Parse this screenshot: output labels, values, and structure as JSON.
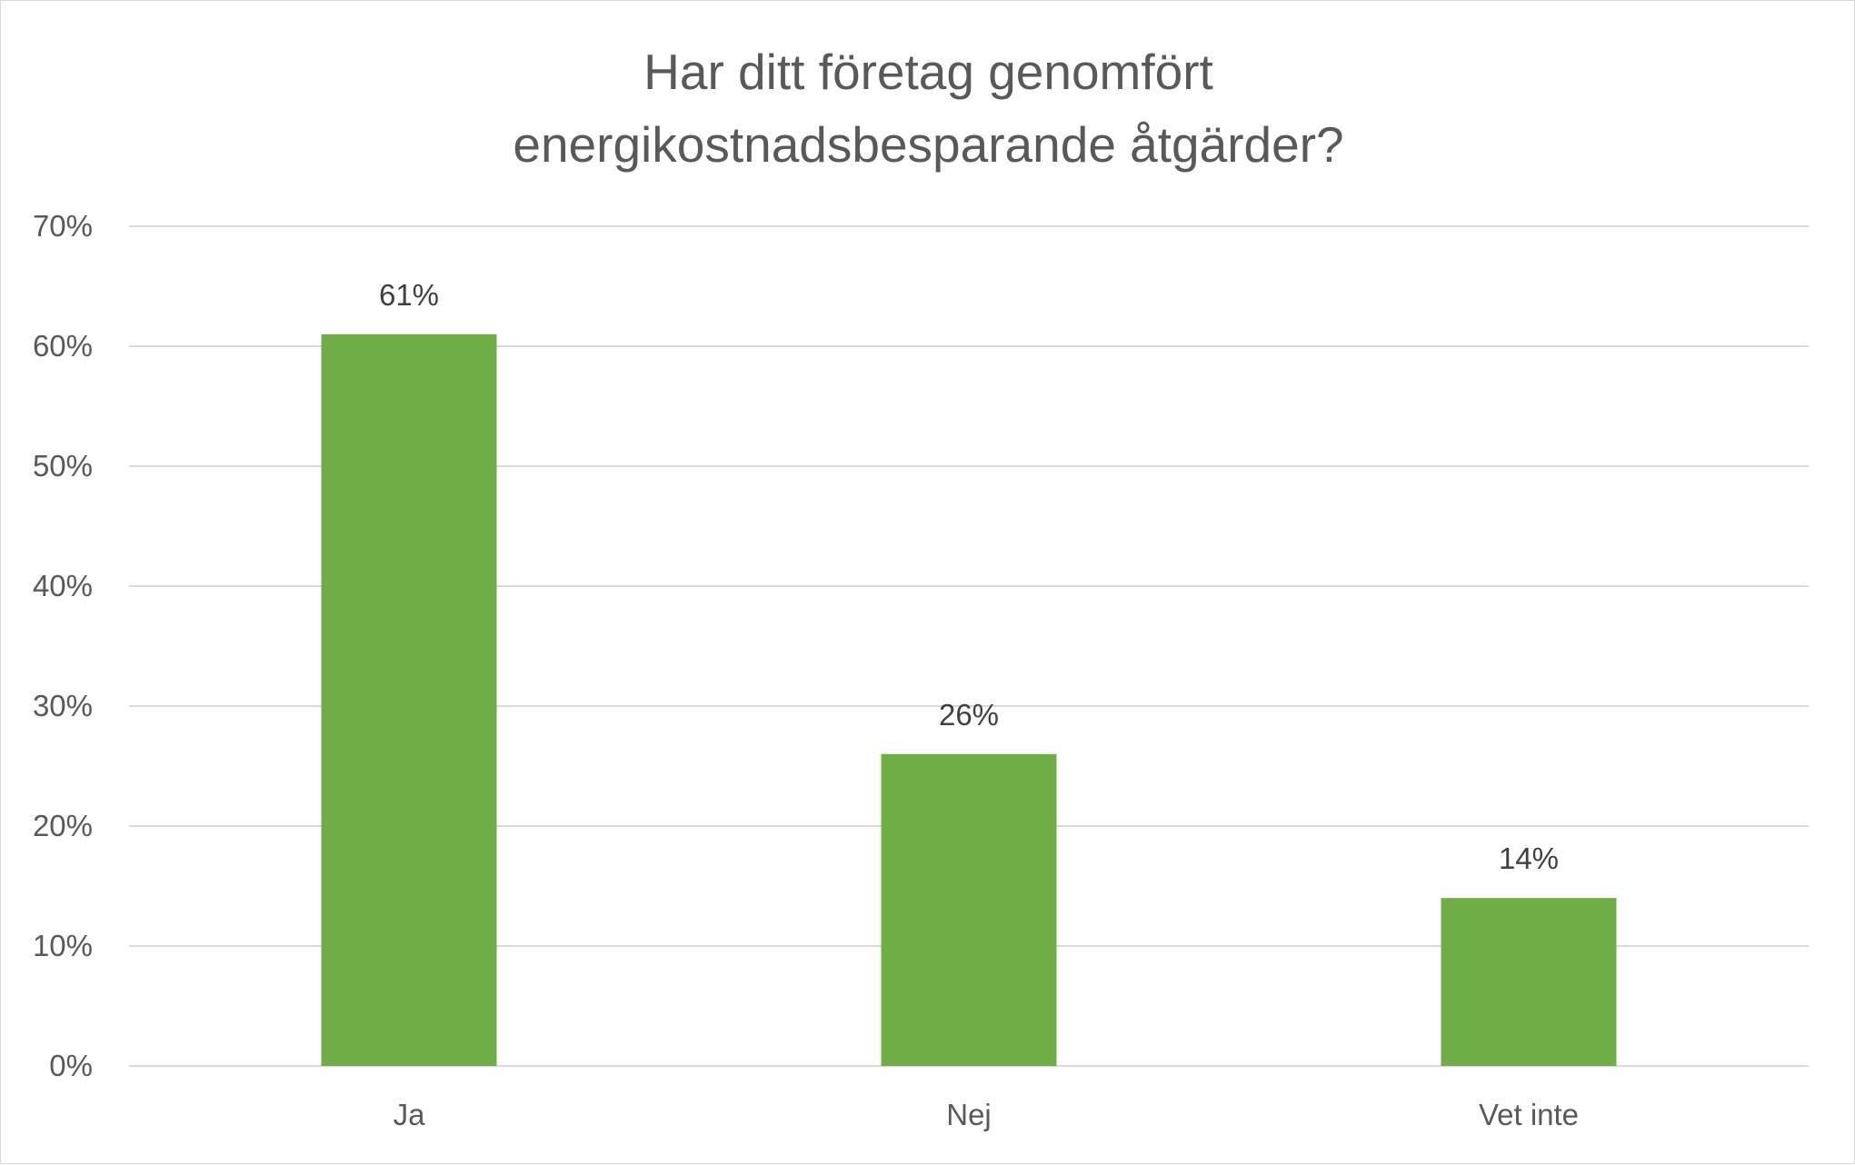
{
  "chart_data": {
    "type": "bar",
    "title": "Har ditt företag genomfört\nenergikostnadsbesparande åtgärder?",
    "categories": [
      "Ja",
      "Nej",
      "Vet inte"
    ],
    "values": [
      61,
      26,
      14
    ],
    "data_labels": [
      "61%",
      "26%",
      "14%"
    ],
    "xlabel": "",
    "ylabel": "",
    "ylim": [
      0,
      70
    ],
    "yticks": [
      0,
      10,
      20,
      30,
      40,
      50,
      60,
      70
    ],
    "ytick_labels": [
      "0%",
      "10%",
      "20%",
      "30%",
      "40%",
      "50%",
      "60%",
      "70%"
    ],
    "grid": true,
    "legend": "none",
    "bar_color": "#70ad47",
    "grid_color": "#d9d9d9"
  }
}
